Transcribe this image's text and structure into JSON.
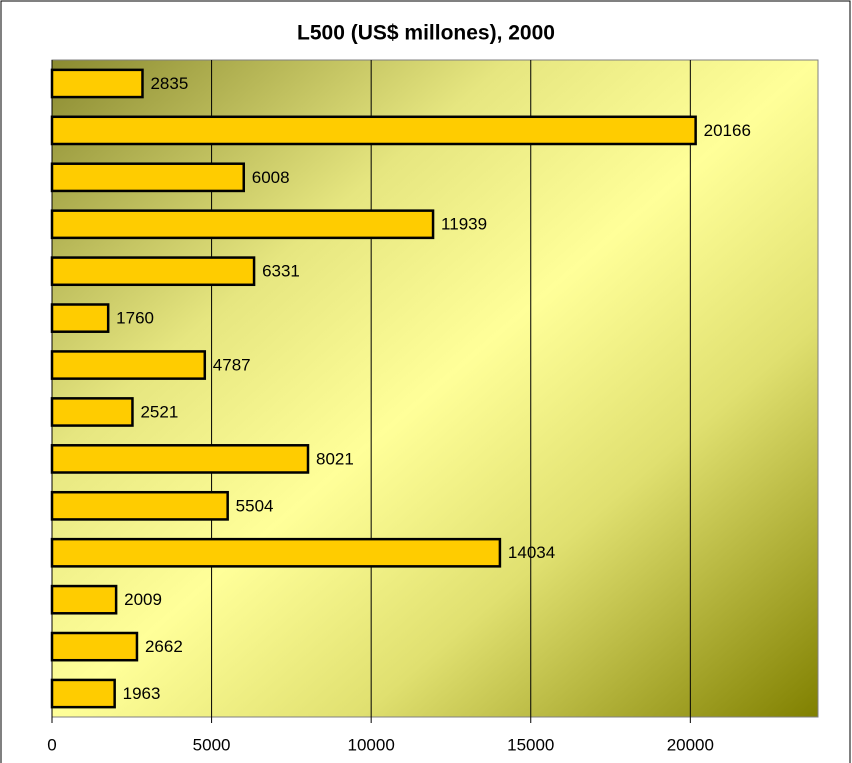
{
  "chart_data": {
    "type": "bar",
    "orientation": "horizontal",
    "title": "L500 (US$ millones), 2000",
    "categories": [
      null,
      null,
      null,
      null,
      null,
      null,
      null,
      null,
      null,
      null,
      null,
      null,
      null,
      null
    ],
    "values": [
      2835,
      20166,
      6008,
      11939,
      6331,
      1760,
      4787,
      2521,
      8021,
      5504,
      14034,
      2009,
      2662,
      1963
    ],
    "color": "#ffcc00",
    "xlim": [
      0,
      24000
    ],
    "xticks": [
      0,
      5000,
      10000,
      15000,
      20000
    ],
    "grid": true
  }
}
